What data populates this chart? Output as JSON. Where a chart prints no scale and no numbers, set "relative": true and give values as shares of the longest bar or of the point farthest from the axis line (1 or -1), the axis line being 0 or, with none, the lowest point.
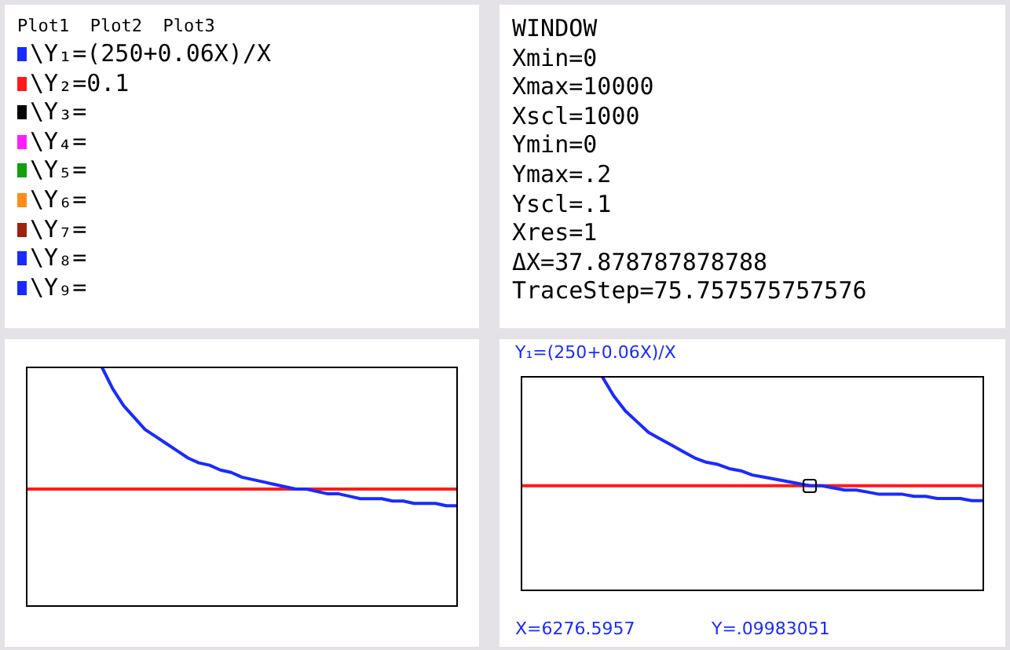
{
  "chart_data": [
    {
      "type": "other",
      "annotations": [
        "Plot1  Plot2  Plot3",
        "\\Y₁=(250+0.06X)/X",
        "\\Y₂=0.1",
        "\\Y₃=",
        "\\Y₄=",
        "\\Y₅=",
        "\\Y₆=",
        "\\Y₇=",
        "\\Y₈=",
        "\\Y₉="
      ],
      "colors": [
        null,
        "#1a2bff",
        "#ff1a1a",
        "#000000",
        "#ff20ff",
        "#10a010",
        "#ff8c1a",
        "#a02010",
        "#1a2bff",
        "#1a2bff"
      ]
    },
    {
      "type": "other",
      "annotations": [
        "WINDOW",
        "Xmin=0",
        "Xmax=10000",
        "Xscl=1000",
        "Ymin=0",
        "Ymax=.2",
        "Yscl=.1",
        "Xres=1",
        "ΔX=37.878787878788",
        "TraceStep=75.757575757576"
      ]
    },
    {
      "type": "line",
      "relative": true,
      "tick_labels": false,
      "legend": false,
      "marker": "none",
      "categories": [
        null,
        null,
        null,
        null,
        null,
        null,
        null,
        null,
        null,
        null,
        null,
        null,
        null,
        null,
        null,
        null,
        null,
        null,
        null,
        null,
        null,
        null,
        null,
        null,
        null,
        null,
        null,
        null,
        null,
        null,
        null,
        null,
        null,
        null,
        null,
        null,
        null,
        null,
        null,
        null,
        null
      ],
      "series": [
        {
          "color": "#1a2bff",
          "values": [
            null,
            null,
            null,
            null,
            null,
            null,
            null,
            1,
            0.91,
            0.84,
            0.79,
            0.74,
            0.71,
            0.68,
            0.65,
            0.62,
            0.6,
            0.59,
            0.57,
            0.56,
            0.54,
            0.53,
            0.52,
            0.51,
            0.5,
            0.49,
            0.49,
            0.48,
            0.47,
            0.47,
            0.46,
            0.45,
            0.45,
            0.45,
            0.44,
            0.44,
            0.43,
            0.43,
            0.43,
            0.42,
            0.42
          ]
        },
        {
          "color": "#ff1a1a",
          "values": [
            0.49,
            0.49,
            0.49,
            0.49,
            0.49,
            0.49,
            0.49,
            0.49,
            0.49,
            0.49,
            0.49,
            0.49,
            0.49,
            0.49,
            0.49,
            0.49,
            0.49,
            0.49,
            0.49,
            0.49,
            0.49,
            0.49,
            0.49,
            0.49,
            0.49,
            0.49,
            0.49,
            0.49,
            0.49,
            0.49,
            0.49,
            0.49,
            0.49,
            0.49,
            0.49,
            0.49,
            0.49,
            0.49,
            0.49,
            0.49,
            0.49
          ]
        }
      ]
    },
    {
      "type": "line",
      "relative": true,
      "tick_labels": false,
      "legend": false,
      "marker": "none",
      "categories": [
        null,
        null,
        null,
        null,
        null,
        null,
        null,
        null,
        null,
        null,
        null,
        null,
        null,
        null,
        null,
        null,
        null,
        null,
        null,
        null,
        null,
        null,
        null,
        null,
        null,
        null,
        null,
        null,
        null,
        null,
        null,
        null,
        null,
        null,
        null,
        null,
        null,
        null,
        null,
        null,
        null
      ],
      "title": "Y₁=(250+0.06X)/X",
      "annotations": [
        "X=6276.5957",
        "Y=.09983051"
      ],
      "series": [
        {
          "color": "#1a2bff",
          "values": [
            null,
            null,
            null,
            null,
            null,
            null,
            null,
            1,
            0.91,
            0.84,
            0.79,
            0.74,
            0.71,
            0.68,
            0.65,
            0.62,
            0.6,
            0.59,
            0.57,
            0.56,
            0.54,
            0.53,
            0.52,
            0.51,
            0.5,
            0.49,
            0.49,
            0.48,
            0.47,
            0.47,
            0.46,
            0.45,
            0.45,
            0.45,
            0.44,
            0.44,
            0.43,
            0.43,
            0.43,
            0.42,
            0.42
          ]
        },
        {
          "color": "#ff1a1a",
          "values": [
            0.49,
            0.49,
            0.49,
            0.49,
            0.49,
            0.49,
            0.49,
            0.49,
            0.49,
            0.49,
            0.49,
            0.49,
            0.49,
            0.49,
            0.49,
            0.49,
            0.49,
            0.49,
            0.49,
            0.49,
            0.49,
            0.49,
            0.49,
            0.49,
            0.49,
            0.49,
            0.49,
            0.49,
            0.49,
            0.49,
            0.49,
            0.49,
            0.49,
            0.49,
            0.49,
            0.49,
            0.49,
            0.49,
            0.49,
            0.49,
            0.49
          ]
        }
      ]
    }
  ]
}
